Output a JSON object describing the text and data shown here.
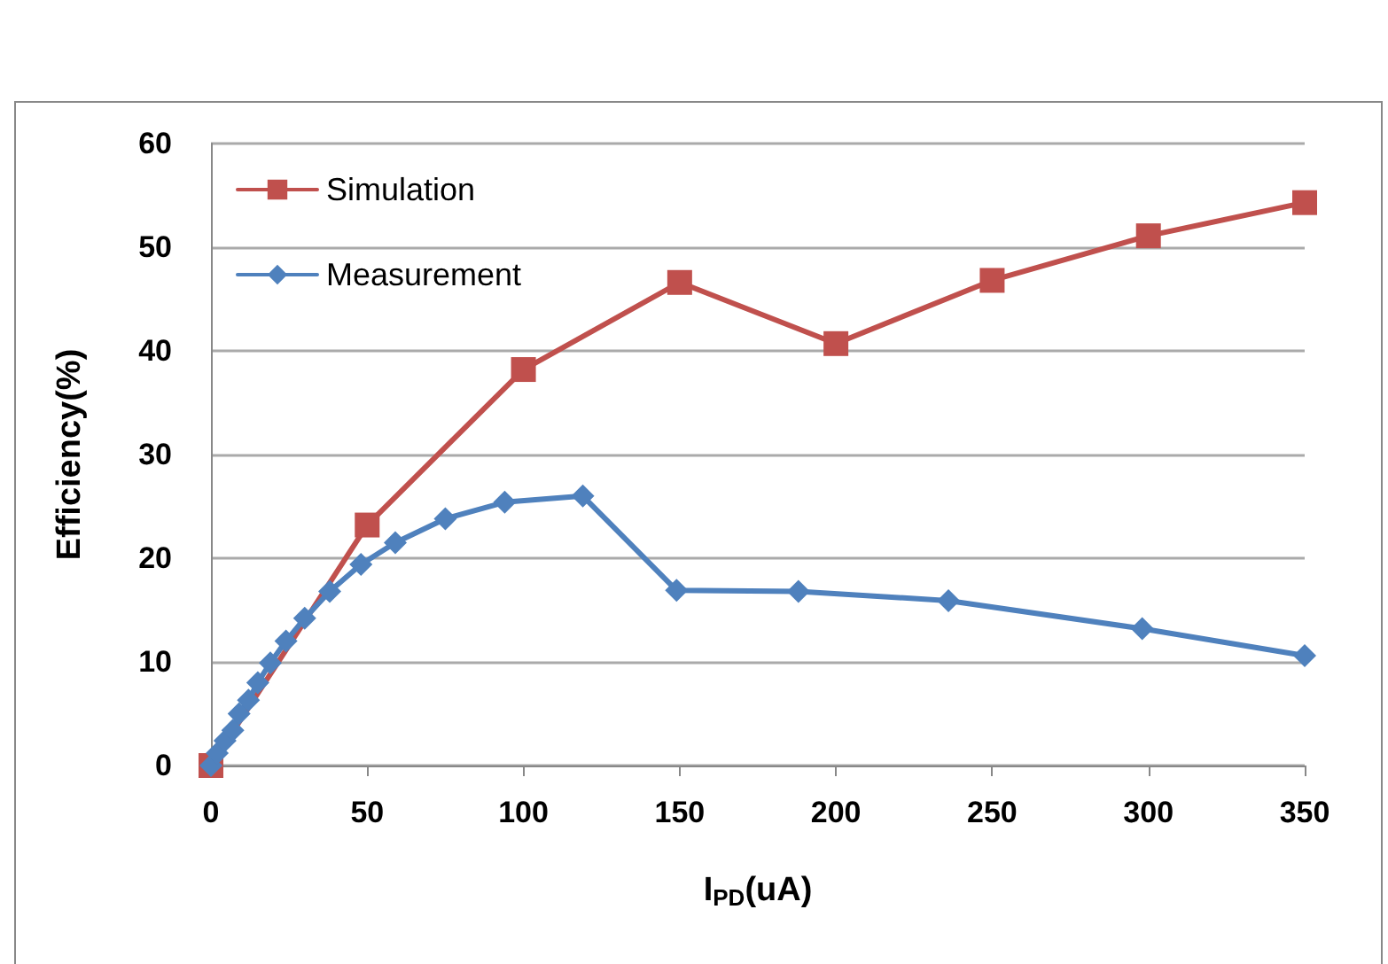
{
  "chart_data": {
    "type": "line",
    "xlabel": "I$_{PD}$(uA)",
    "ylabel": "Efficiency(%)",
    "xlim": [
      0,
      350
    ],
    "xticks": [
      0,
      50,
      100,
      150,
      200,
      250,
      300,
      350
    ],
    "ylim": [
      0,
      60
    ],
    "yticks": [
      0,
      10,
      20,
      30,
      40,
      50,
      60
    ],
    "grid": "y",
    "legend": "top left",
    "line_style": "solid",
    "series": [
      {
        "name": "Simulation",
        "color": "#c0504d",
        "marker": "square",
        "x": [
          0,
          50,
          100,
          150,
          200,
          250,
          300,
          350
        ],
        "values": [
          0,
          23.2,
          38.2,
          46.6,
          40.7,
          46.8,
          51.1,
          54.3
        ]
      },
      {
        "name": "Measurement",
        "color": "#4f81bd",
        "marker": "diamond",
        "x": [
          0,
          2,
          4.5,
          7,
          9,
          12,
          15,
          19,
          24,
          30,
          38,
          48,
          59,
          75,
          94,
          119,
          149,
          188,
          236,
          298,
          350
        ],
        "values": [
          0,
          1.2,
          2.4,
          3.4,
          5,
          6.3,
          8,
          9.9,
          12,
          14.2,
          16.8,
          19.4,
          21.5,
          23.8,
          25.4,
          26,
          16.9,
          16.8,
          15.9,
          13.2,
          10.6
        ]
      }
    ]
  }
}
